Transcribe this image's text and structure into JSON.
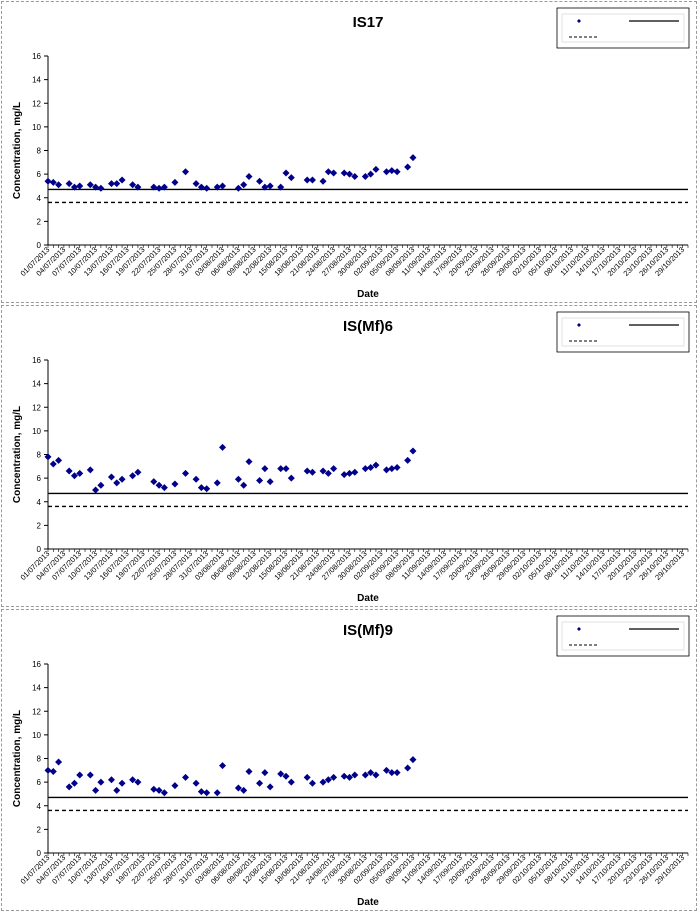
{
  "colors": {
    "point": "#00008B",
    "limit_line": "#000000",
    "grid": "#000000"
  },
  "chart_data": [
    {
      "type": "scatter",
      "title": "IS17",
      "xlabel": "Date",
      "ylabel": "Concentration, mg/L",
      "ylim": [
        0,
        16
      ],
      "yticks": [
        0,
        2,
        4,
        6,
        8,
        10,
        12,
        14,
        16
      ],
      "xlim": [
        "2013-07-01",
        "2013-10-30"
      ],
      "xtick_labels": [
        "01/07/2013",
        "04/07/2013",
        "07/07/2013",
        "10/07/2013",
        "13/07/2013",
        "16/07/2013",
        "19/07/2013",
        "22/07/2013",
        "25/07/2013",
        "28/07/2013",
        "31/07/2013",
        "03/08/2013",
        "06/08/2013",
        "09/08/2013",
        "12/08/2013",
        "15/08/2013",
        "18/08/2013",
        "21/08/2013",
        "24/08/2013",
        "27/08/2013",
        "30/08/2013",
        "02/09/2013",
        "05/09/2013",
        "08/09/2013",
        "11/09/2013",
        "14/09/2013",
        "17/09/2013",
        "20/09/2013",
        "23/09/2013",
        "26/09/2013",
        "29/09/2013",
        "02/10/2013",
        "05/10/2013",
        "08/10/2013",
        "11/10/2013",
        "14/10/2013",
        "17/10/2013",
        "20/10/2013",
        "23/10/2013",
        "26/10/2013",
        "29/10/2013"
      ],
      "grid": false,
      "legend_position": "top-right",
      "points": [
        [
          "2013-07-01",
          5.4
        ],
        [
          "2013-07-02",
          5.3
        ],
        [
          "2013-07-03",
          5.1
        ],
        [
          "2013-07-05",
          5.2
        ],
        [
          "2013-07-06",
          4.9
        ],
        [
          "2013-07-07",
          5.0
        ],
        [
          "2013-07-09",
          5.1
        ],
        [
          "2013-07-10",
          4.9
        ],
        [
          "2013-07-11",
          4.8
        ],
        [
          "2013-07-13",
          5.2
        ],
        [
          "2013-07-14",
          5.2
        ],
        [
          "2013-07-15",
          5.5
        ],
        [
          "2013-07-17",
          5.1
        ],
        [
          "2013-07-18",
          4.9
        ],
        [
          "2013-07-21",
          4.9
        ],
        [
          "2013-07-22",
          4.8
        ],
        [
          "2013-07-23",
          4.9
        ],
        [
          "2013-07-25",
          5.3
        ],
        [
          "2013-07-27",
          6.2
        ],
        [
          "2013-07-29",
          5.2
        ],
        [
          "2013-07-30",
          4.9
        ],
        [
          "2013-07-31",
          4.8
        ],
        [
          "2013-08-02",
          4.9
        ],
        [
          "2013-08-03",
          5.0
        ],
        [
          "2013-08-06",
          4.8
        ],
        [
          "2013-08-07",
          5.1
        ],
        [
          "2013-08-08",
          5.8
        ],
        [
          "2013-08-10",
          5.4
        ],
        [
          "2013-08-11",
          4.9
        ],
        [
          "2013-08-12",
          5.0
        ],
        [
          "2013-08-14",
          4.9
        ],
        [
          "2013-08-15",
          6.1
        ],
        [
          "2013-08-16",
          5.7
        ],
        [
          "2013-08-19",
          5.5
        ],
        [
          "2013-08-20",
          5.5
        ],
        [
          "2013-08-22",
          5.4
        ],
        [
          "2013-08-23",
          6.2
        ],
        [
          "2013-08-24",
          6.1
        ],
        [
          "2013-08-26",
          6.1
        ],
        [
          "2013-08-27",
          6.0
        ],
        [
          "2013-08-28",
          5.8
        ],
        [
          "2013-08-30",
          5.8
        ],
        [
          "2013-08-31",
          6.0
        ],
        [
          "2013-09-01",
          6.4
        ],
        [
          "2013-09-03",
          6.2
        ],
        [
          "2013-09-04",
          6.3
        ],
        [
          "2013-09-05",
          6.2
        ],
        [
          "2013-09-07",
          6.6
        ],
        [
          "2013-09-08",
          7.4
        ]
      ],
      "limit_lines": [
        4.7,
        3.6
      ],
      "legend": {}
    },
    {
      "type": "scatter",
      "title": "IS(Mf)6",
      "xlabel": "Date",
      "ylabel": "Concentration, mg/L",
      "ylim": [
        0,
        16
      ],
      "yticks": [
        0,
        2,
        4,
        6,
        8,
        10,
        12,
        14,
        16
      ],
      "xlim": [
        "2013-07-01",
        "2013-10-30"
      ],
      "xtick_labels": [
        "01/07/2013",
        "04/07/2013",
        "07/07/2013",
        "10/07/2013",
        "13/07/2013",
        "16/07/2013",
        "19/07/2013",
        "22/07/2013",
        "25/07/2013",
        "28/07/2013",
        "31/07/2013",
        "03/08/2013",
        "06/08/2013",
        "09/08/2013",
        "12/08/2013",
        "15/08/2013",
        "18/08/2013",
        "21/08/2013",
        "24/08/2013",
        "27/08/2013",
        "30/08/2013",
        "02/09/2013",
        "05/09/2013",
        "08/09/2013",
        "11/09/2013",
        "14/09/2013",
        "17/09/2013",
        "20/09/2013",
        "23/09/2013",
        "26/09/2013",
        "29/09/2013",
        "02/10/2013",
        "05/10/2013",
        "08/10/2013",
        "11/10/2013",
        "14/10/2013",
        "17/10/2013",
        "20/10/2013",
        "23/10/2013",
        "26/10/2013",
        "29/10/2013"
      ],
      "grid": false,
      "legend_position": "top-right",
      "points": [
        [
          "2013-07-01",
          7.8
        ],
        [
          "2013-07-02",
          7.2
        ],
        [
          "2013-07-03",
          7.5
        ],
        [
          "2013-07-05",
          6.6
        ],
        [
          "2013-07-06",
          6.2
        ],
        [
          "2013-07-07",
          6.4
        ],
        [
          "2013-07-09",
          6.7
        ],
        [
          "2013-07-10",
          5.0
        ],
        [
          "2013-07-11",
          5.4
        ],
        [
          "2013-07-13",
          6.1
        ],
        [
          "2013-07-14",
          5.6
        ],
        [
          "2013-07-15",
          5.9
        ],
        [
          "2013-07-17",
          6.2
        ],
        [
          "2013-07-18",
          6.5
        ],
        [
          "2013-07-21",
          5.7
        ],
        [
          "2013-07-22",
          5.4
        ],
        [
          "2013-07-23",
          5.2
        ],
        [
          "2013-07-25",
          5.5
        ],
        [
          "2013-07-27",
          6.4
        ],
        [
          "2013-07-29",
          5.9
        ],
        [
          "2013-07-30",
          5.2
        ],
        [
          "2013-07-31",
          5.1
        ],
        [
          "2013-08-02",
          5.6
        ],
        [
          "2013-08-03",
          8.6
        ],
        [
          "2013-08-06",
          5.9
        ],
        [
          "2013-08-07",
          5.4
        ],
        [
          "2013-08-08",
          7.4
        ],
        [
          "2013-08-10",
          5.8
        ],
        [
          "2013-08-11",
          6.8
        ],
        [
          "2013-08-12",
          5.7
        ],
        [
          "2013-08-14",
          6.8
        ],
        [
          "2013-08-15",
          6.8
        ],
        [
          "2013-08-16",
          6.0
        ],
        [
          "2013-08-19",
          6.6
        ],
        [
          "2013-08-20",
          6.5
        ],
        [
          "2013-08-22",
          6.6
        ],
        [
          "2013-08-23",
          6.4
        ],
        [
          "2013-08-24",
          6.8
        ],
        [
          "2013-08-26",
          6.3
        ],
        [
          "2013-08-27",
          6.4
        ],
        [
          "2013-08-28",
          6.5
        ],
        [
          "2013-08-30",
          6.8
        ],
        [
          "2013-08-31",
          6.9
        ],
        [
          "2013-09-01",
          7.1
        ],
        [
          "2013-09-03",
          6.7
        ],
        [
          "2013-09-04",
          6.8
        ],
        [
          "2013-09-05",
          6.9
        ],
        [
          "2013-09-07",
          7.5
        ],
        [
          "2013-09-08",
          8.3
        ]
      ],
      "limit_lines": [
        4.7,
        3.6
      ],
      "legend": {}
    },
    {
      "type": "scatter",
      "title": "IS(Mf)9",
      "xlabel": "Date",
      "ylabel": "Concentration, mg/L",
      "ylim": [
        0,
        16
      ],
      "yticks": [
        0,
        2,
        4,
        6,
        8,
        10,
        12,
        14,
        16
      ],
      "xlim": [
        "2013-07-01",
        "2013-10-30"
      ],
      "xtick_labels": [
        "01/07/2013",
        "04/07/2013",
        "07/07/2013",
        "10/07/2013",
        "13/07/2013",
        "16/07/2013",
        "19/07/2013",
        "22/07/2013",
        "25/07/2013",
        "28/07/2013",
        "31/07/2013",
        "03/08/2013",
        "06/08/2013",
        "09/08/2013",
        "12/08/2013",
        "15/08/2013",
        "18/08/2013",
        "21/08/2013",
        "24/08/2013",
        "27/08/2013",
        "30/08/2013",
        "02/09/2013",
        "05/09/2013",
        "08/09/2013",
        "11/09/2013",
        "14/09/2013",
        "17/09/2013",
        "20/09/2013",
        "23/09/2013",
        "26/09/2013",
        "29/09/2013",
        "02/10/2013",
        "05/10/2013",
        "08/10/2013",
        "11/10/2013",
        "14/10/2013",
        "17/10/2013",
        "20/10/2013",
        "23/10/2013",
        "26/10/2013",
        "29/10/2013"
      ],
      "grid": false,
      "legend_position": "top-right",
      "points": [
        [
          "2013-07-01",
          7.0
        ],
        [
          "2013-07-02",
          6.9
        ],
        [
          "2013-07-03",
          7.7
        ],
        [
          "2013-07-05",
          5.6
        ],
        [
          "2013-07-06",
          5.9
        ],
        [
          "2013-07-07",
          6.6
        ],
        [
          "2013-07-09",
          6.6
        ],
        [
          "2013-07-10",
          5.3
        ],
        [
          "2013-07-11",
          6.0
        ],
        [
          "2013-07-13",
          6.2
        ],
        [
          "2013-07-14",
          5.3
        ],
        [
          "2013-07-15",
          5.9
        ],
        [
          "2013-07-17",
          6.2
        ],
        [
          "2013-07-18",
          6.0
        ],
        [
          "2013-07-21",
          5.4
        ],
        [
          "2013-07-22",
          5.3
        ],
        [
          "2013-07-23",
          5.1
        ],
        [
          "2013-07-25",
          5.7
        ],
        [
          "2013-07-27",
          6.4
        ],
        [
          "2013-07-29",
          5.9
        ],
        [
          "2013-07-30",
          5.2
        ],
        [
          "2013-07-31",
          5.1
        ],
        [
          "2013-08-02",
          5.1
        ],
        [
          "2013-08-03",
          7.4
        ],
        [
          "2013-08-06",
          5.5
        ],
        [
          "2013-08-07",
          5.3
        ],
        [
          "2013-08-08",
          6.9
        ],
        [
          "2013-08-10",
          5.9
        ],
        [
          "2013-08-11",
          6.8
        ],
        [
          "2013-08-12",
          5.6
        ],
        [
          "2013-08-14",
          6.7
        ],
        [
          "2013-08-15",
          6.5
        ],
        [
          "2013-08-16",
          6.0
        ],
        [
          "2013-08-19",
          6.4
        ],
        [
          "2013-08-20",
          5.9
        ],
        [
          "2013-08-22",
          6.0
        ],
        [
          "2013-08-23",
          6.2
        ],
        [
          "2013-08-24",
          6.4
        ],
        [
          "2013-08-26",
          6.5
        ],
        [
          "2013-08-27",
          6.4
        ],
        [
          "2013-08-28",
          6.6
        ],
        [
          "2013-08-30",
          6.6
        ],
        [
          "2013-08-31",
          6.8
        ],
        [
          "2013-09-01",
          6.6
        ],
        [
          "2013-09-03",
          7.0
        ],
        [
          "2013-09-04",
          6.8
        ],
        [
          "2013-09-05",
          6.8
        ],
        [
          "2013-09-07",
          7.2
        ],
        [
          "2013-09-08",
          7.9
        ]
      ],
      "limit_lines": [
        4.7,
        3.6
      ],
      "legend": {}
    }
  ]
}
